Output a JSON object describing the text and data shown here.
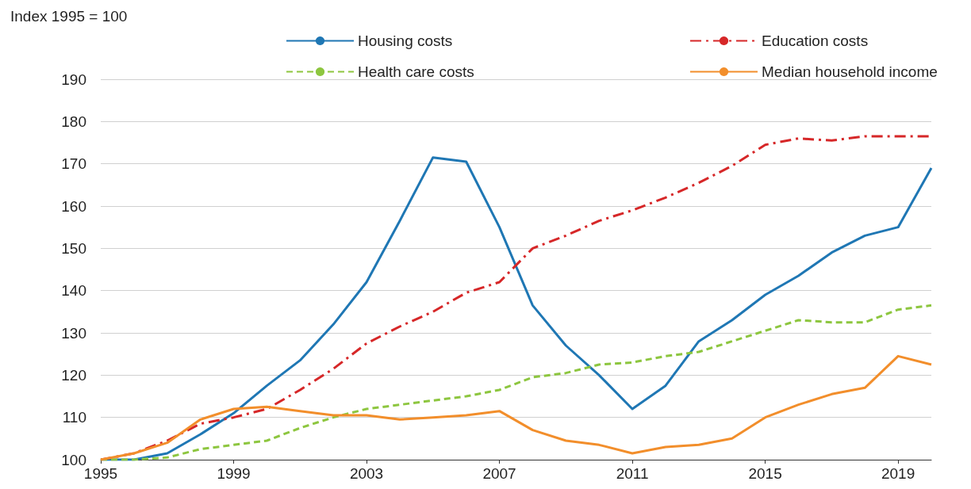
{
  "chart_data": {
    "type": "line",
    "ylabel": "Index 1995 = 100",
    "x": [
      1995,
      1996,
      1997,
      1998,
      1999,
      2000,
      2001,
      2002,
      2003,
      2004,
      2005,
      2006,
      2007,
      2008,
      2009,
      2010,
      2011,
      2012,
      2013,
      2014,
      2015,
      2016,
      2017,
      2018,
      2019,
      2020
    ],
    "series": [
      {
        "name": "Housing costs",
        "color": "#1f77b4",
        "line_style": "solid",
        "values": [
          100,
          100,
          101.5,
          106,
          111,
          117.5,
          123.5,
          132,
          142,
          156.5,
          171.5,
          170.5,
          155,
          136.5,
          127,
          120,
          112,
          117.5,
          128,
          133,
          139,
          143.5,
          149,
          153,
          155,
          169
        ]
      },
      {
        "name": "Education costs",
        "color": "#d62728",
        "line_style": "dashdot",
        "values": [
          100,
          101.5,
          104.5,
          108.5,
          110,
          112,
          116.5,
          121.5,
          127.5,
          131.5,
          135,
          139.5,
          142,
          150,
          153,
          156.5,
          159,
          162,
          165.5,
          169.5,
          174.5,
          176,
          175.5,
          176.5,
          176.5,
          176.5
        ]
      },
      {
        "name": "Health care costs",
        "color": "#8dc63f",
        "line_style": "dashed",
        "values": [
          100,
          100,
          100.5,
          102.5,
          103.5,
          104.5,
          107.5,
          110,
          112,
          113,
          114,
          115,
          116.5,
          119.5,
          120.5,
          122.5,
          123,
          124.5,
          125.5,
          128,
          130.5,
          133,
          132.5,
          132.5,
          135.5,
          136.5
        ]
      },
      {
        "name": "Median household income",
        "color": "#f28e2b",
        "line_style": "solid",
        "values": [
          100,
          101.5,
          104,
          109.5,
          112,
          112.5,
          111.5,
          110.5,
          110.5,
          109.5,
          110,
          110.5,
          111.5,
          107,
          104.5,
          103.5,
          101.5,
          103,
          103.5,
          105,
          110,
          113,
          115.5,
          117,
          124.5,
          122.5
        ]
      }
    ],
    "xlim": [
      1995,
      2020
    ],
    "xticks": [
      1995,
      1999,
      2003,
      2007,
      2011,
      2015,
      2019
    ],
    "ylim": [
      100,
      190
    ],
    "yticks": [
      100,
      110,
      120,
      130,
      140,
      150,
      160,
      170,
      180,
      190
    ],
    "grid": "y",
    "legend": "top",
    "marker": "none"
  }
}
